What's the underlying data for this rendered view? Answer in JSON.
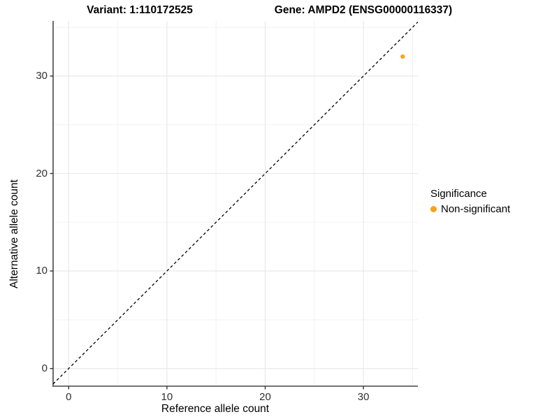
{
  "figure": {
    "title_left": "Variant: 1:110172525",
    "title_right": "Gene: AMPD2 (ENSG00000116337)"
  },
  "chart_data": {
    "type": "scatter",
    "title": "Variant: 1:110172525 / Gene: AMPD2 (ENSG00000116337)",
    "xlabel": "Reference allele count",
    "ylabel": "Alternative allele count",
    "xlim": [
      -1.6,
      35.5
    ],
    "ylim": [
      -1.8,
      35.7
    ],
    "x_major_ticks": [
      0,
      10,
      20,
      30
    ],
    "y_major_ticks": [
      0,
      10,
      20,
      30
    ],
    "x_minor_ticks": [
      5,
      15,
      25,
      35
    ],
    "y_minor_ticks": [
      5,
      15,
      25,
      35
    ],
    "grid": "major+minor",
    "reference_line": {
      "kind": "identity y=x",
      "style": "dashed",
      "color": "#000000"
    },
    "series": [
      {
        "name": "Non-significant",
        "color": "#FAA21B",
        "points": [
          {
            "x": 34,
            "y": 32
          }
        ]
      }
    ],
    "legend": {
      "title": "Significance",
      "position": "right",
      "items": [
        {
          "label": "Non-significant",
          "color": "#FAA21B"
        }
      ]
    },
    "colors": {
      "grid_major": "#e7e7e7",
      "grid_minor": "#f2f2f2",
      "axis_line": "#474747",
      "tick_mark": "#333333",
      "tick_text": "#303030"
    }
  }
}
